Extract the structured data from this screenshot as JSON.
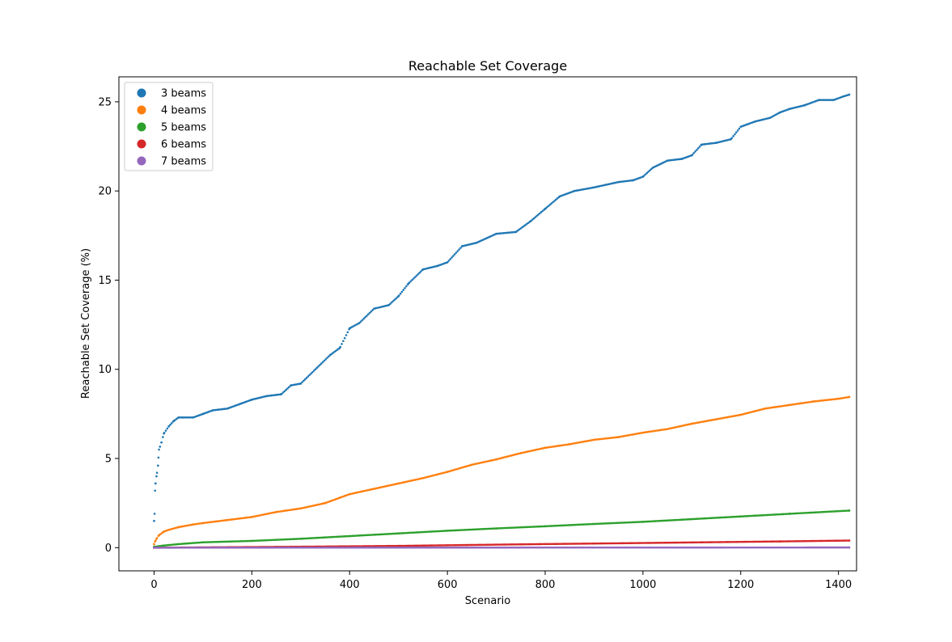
{
  "chart_data": {
    "type": "scatter",
    "title": "Reachable Set Coverage",
    "xlabel": "Scenario",
    "ylabel": "Reachable Set Coverage (%)",
    "xlim": [
      -72,
      1437
    ],
    "ylim": [
      -1.3,
      26.4
    ],
    "xticks": [
      0,
      200,
      400,
      600,
      800,
      1000,
      1200,
      1400
    ],
    "yticks": [
      0,
      5,
      10,
      15,
      20,
      25
    ],
    "grid": false,
    "legend": "top-left",
    "x_range": [
      0,
      1422
    ],
    "series": [
      {
        "name": "3 beams",
        "color": "#1f77b4",
        "x": [
          0,
          1,
          2,
          3,
          5,
          8,
          10,
          15,
          20,
          30,
          40,
          50,
          60,
          80,
          100,
          120,
          150,
          180,
          200,
          230,
          260,
          280,
          300,
          330,
          360,
          380,
          400,
          420,
          450,
          480,
          500,
          520,
          550,
          580,
          600,
          630,
          660,
          700,
          740,
          770,
          800,
          830,
          860,
          900,
          950,
          980,
          1000,
          1020,
          1050,
          1080,
          1100,
          1120,
          1150,
          1180,
          1200,
          1230,
          1260,
          1280,
          1300,
          1330,
          1360,
          1390,
          1410,
          1422
        ],
        "y": [
          1.5,
          1.9,
          3.2,
          3.6,
          4.0,
          4.6,
          5.5,
          5.9,
          6.4,
          6.8,
          7.1,
          7.3,
          7.3,
          7.3,
          7.5,
          7.7,
          7.8,
          8.1,
          8.3,
          8.5,
          8.6,
          9.1,
          9.2,
          10.0,
          10.8,
          11.2,
          12.3,
          12.6,
          13.4,
          13.6,
          14.1,
          14.8,
          15.6,
          15.8,
          16.0,
          16.9,
          17.1,
          17.6,
          17.7,
          18.3,
          19.0,
          19.7,
          20.0,
          20.2,
          20.5,
          20.6,
          20.8,
          21.3,
          21.7,
          21.8,
          22.0,
          22.6,
          22.7,
          22.9,
          23.6,
          23.9,
          24.1,
          24.4,
          24.6,
          24.8,
          25.1,
          25.1,
          25.3,
          25.4
        ]
      },
      {
        "name": "4 beams",
        "color": "#ff7f0e",
        "x": [
          0,
          2,
          5,
          10,
          20,
          30,
          50,
          80,
          100,
          150,
          200,
          250,
          300,
          350,
          380,
          400,
          450,
          500,
          550,
          600,
          650,
          700,
          750,
          800,
          850,
          900,
          950,
          1000,
          1050,
          1100,
          1150,
          1200,
          1250,
          1300,
          1350,
          1400,
          1422
        ],
        "y": [
          0.2,
          0.35,
          0.5,
          0.7,
          0.9,
          1.0,
          1.15,
          1.3,
          1.38,
          1.55,
          1.72,
          2.0,
          2.2,
          2.5,
          2.8,
          3.0,
          3.3,
          3.6,
          3.9,
          4.25,
          4.65,
          4.95,
          5.3,
          5.6,
          5.8,
          6.05,
          6.2,
          6.45,
          6.65,
          6.95,
          7.2,
          7.45,
          7.8,
          8.0,
          8.2,
          8.35,
          8.45
        ]
      },
      {
        "name": "5 beams",
        "color": "#2ca02c",
        "x": [
          0,
          20,
          50,
          100,
          200,
          300,
          400,
          500,
          600,
          700,
          800,
          900,
          1000,
          1100,
          1200,
          1300,
          1422
        ],
        "y": [
          0.05,
          0.12,
          0.2,
          0.3,
          0.38,
          0.5,
          0.65,
          0.8,
          0.95,
          1.08,
          1.2,
          1.33,
          1.45,
          1.6,
          1.75,
          1.9,
          2.08
        ]
      },
      {
        "name": "6 beams",
        "color": "#d62728",
        "x": [
          0,
          280,
          500,
          640,
          790,
          960,
          1120,
          1280,
          1422
        ],
        "y": [
          0.0,
          0.05,
          0.1,
          0.15,
          0.2,
          0.25,
          0.3,
          0.35,
          0.4
        ]
      },
      {
        "name": "7 beams",
        "color": "#9467bd",
        "x": [
          0,
          500,
          1422
        ],
        "y": [
          0.0,
          0.005,
          0.01
        ]
      }
    ]
  }
}
